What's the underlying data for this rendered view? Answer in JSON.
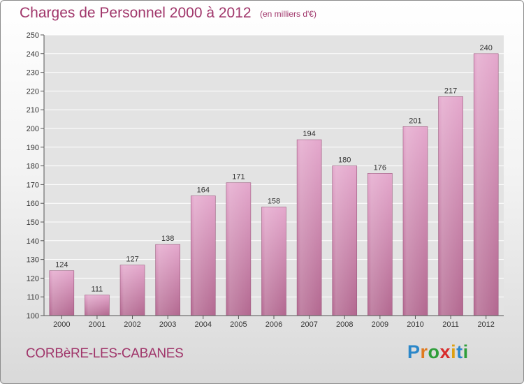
{
  "header": {
    "title": "Charges de Personnel 2000 à 2012",
    "subtitle": "(en milliers d'€)"
  },
  "footer": {
    "commune": "CORBèRE-LES-CABANES",
    "logo_text": "Proxiti"
  },
  "colors": {
    "bar_top": "#e4a7cc",
    "bar_bottom": "#b2678f",
    "title": "#a0356a",
    "grid": "#ffffff",
    "plot_bg": "#e3e3e3"
  },
  "chart_data": {
    "type": "bar",
    "categories": [
      "2000",
      "2001",
      "2002",
      "2003",
      "2004",
      "2005",
      "2006",
      "2007",
      "2008",
      "2009",
      "2010",
      "2011",
      "2012"
    ],
    "values": [
      124,
      111,
      127,
      138,
      164,
      171,
      158,
      194,
      180,
      176,
      201,
      217,
      240
    ],
    "title": "Charges de Personnel 2000 à 2012",
    "subtitle": "(en milliers d'€)",
    "xlabel": "",
    "ylabel": "",
    "ylim": [
      100,
      250
    ],
    "yticks": [
      100,
      110,
      120,
      130,
      140,
      150,
      160,
      170,
      180,
      190,
      200,
      210,
      220,
      230,
      240,
      250
    ],
    "grid": true,
    "legend": "none"
  }
}
